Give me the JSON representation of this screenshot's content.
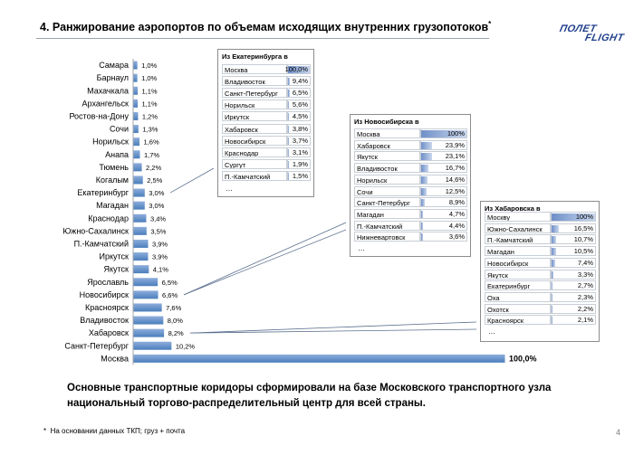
{
  "header": {
    "title": "4. Ранжирование аэропортов по объемам исходящих внутренних грузопотоков",
    "title_mark": "*"
  },
  "logo": {
    "line1": "ПОЛЕТ",
    "line2": "FLIGHT"
  },
  "chart_data": [
    {
      "type": "bar",
      "orientation": "horizontal",
      "categories": [
        "Самара",
        "Барнаул",
        "Махачкала",
        "Архангельск",
        "Ростов-на-Дону",
        "Сочи",
        "Норильск",
        "Анапа",
        "Тюмень",
        "Когалым",
        "Екатеринбург",
        "Магадан",
        "Краснодар",
        "Южно-Сахалинск",
        "П.-Камчатский",
        "Иркутск",
        "Якутск",
        "Ярославль",
        "Новосибирск",
        "Красноярск",
        "Владивосток",
        "Хабаровск",
        "Санкт-Петербург",
        "Москва"
      ],
      "values": [
        1.0,
        1.0,
        1.1,
        1.1,
        1.2,
        1.3,
        1.6,
        1.7,
        2.2,
        2.5,
        3.0,
        3.0,
        3.4,
        3.5,
        3.9,
        3.9,
        4.1,
        6.5,
        6.6,
        7.6,
        8.0,
        8.2,
        10.2,
        100.0
      ],
      "value_labels": [
        "1,0%",
        "1,0%",
        "1,1%",
        "1,1%",
        "1,2%",
        "1,3%",
        "1,6%",
        "1,7%",
        "2,2%",
        "2,5%",
        "3,0%",
        "3,0%",
        "3,4%",
        "3,5%",
        "3,9%",
        "3,9%",
        "4,1%",
        "6,5%",
        "6,6%",
        "7,6%",
        "8,0%",
        "8,2%",
        "10,2%",
        "100,0%"
      ],
      "xlim": [
        0,
        100
      ],
      "colors": {
        "bar": "#4a7ebb",
        "bar_top": "#8eaedc"
      }
    },
    {
      "type": "bar",
      "title": "Из Екатеринбурга в",
      "categories": [
        "Москва",
        "Владивосток",
        "Санкт-Петербург",
        "Норильск",
        "Иркутск",
        "Хабаровск",
        "Новосибирск",
        "Краснодар",
        "Сургут",
        "П.-Камчатский"
      ],
      "values": [
        100.0,
        9.4,
        6.5,
        5.6,
        4.5,
        3.8,
        3.7,
        3.1,
        1.9,
        1.5
      ],
      "value_labels": [
        "100,0%",
        "9,4%",
        "6,5%",
        "5,6%",
        "4,5%",
        "3,8%",
        "3,7%",
        "3,1%",
        "1,9%",
        "1,5%"
      ],
      "more": "…"
    },
    {
      "type": "bar",
      "title": "Из Новосибирска в",
      "categories": [
        "Москва",
        "Хабаровск",
        "Якутск",
        "Владивосток",
        "Норильск",
        "Сочи",
        "Санкт-Петербург",
        "Магадан",
        "П.-Камчатский",
        "Нижневартовск"
      ],
      "values": [
        100,
        23.9,
        23.1,
        16.7,
        14.6,
        12.5,
        8.9,
        4.7,
        4.4,
        3.6
      ],
      "value_labels": [
        "100%",
        "23,9%",
        "23,1%",
        "16,7%",
        "14,6%",
        "12,5%",
        "8,9%",
        "4,7%",
        "4,4%",
        "3,6%"
      ],
      "more": "…"
    },
    {
      "type": "bar",
      "title": "Из Хабаровска в",
      "categories": [
        "Москву",
        "Южно-Сахалинск",
        "П.-Камчатский",
        "Магадан",
        "Новосибирск",
        "Якутск",
        "Екатеринбург",
        "Оха",
        "Охотск",
        "Красноярск"
      ],
      "values": [
        100,
        16.5,
        10.7,
        10.5,
        7.4,
        3.3,
        2.7,
        2.3,
        2.2,
        2.1
      ],
      "value_labels": [
        "100%",
        "16,5%",
        "10,7%",
        "10,5%",
        "7,4%",
        "3,3%",
        "2,7%",
        "2,3%",
        "2,2%",
        "2,1%"
      ],
      "more": "…"
    }
  ],
  "summary": "Основные транспортные коридоры сформировали на базе Московского транспортного узла национальный торгово-распределительный центр для всей страны.",
  "footnote": {
    "mark": "*",
    "text": "На основании  данных ТКП; груз + почта"
  },
  "page_number": "4"
}
